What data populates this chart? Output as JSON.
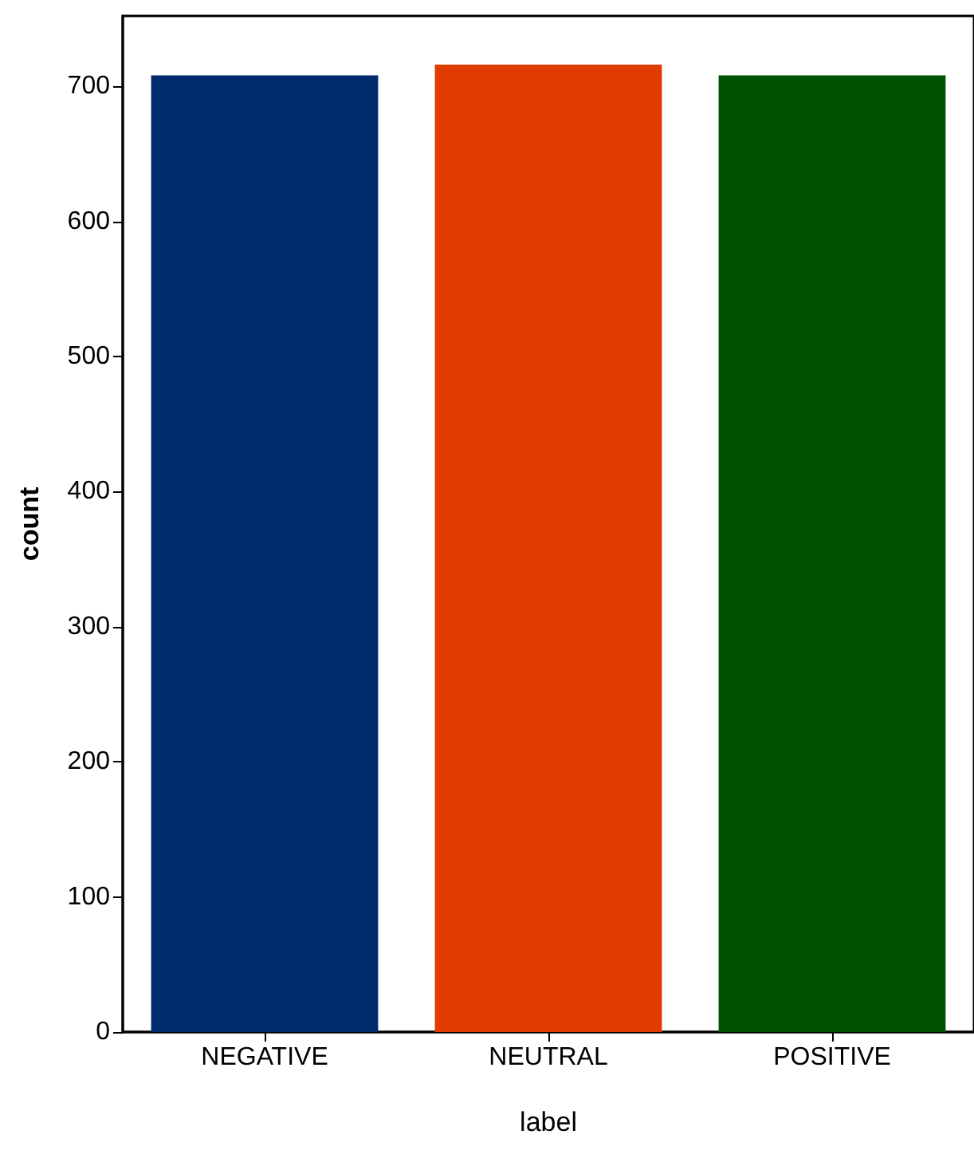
{
  "chart_data": {
    "type": "bar",
    "xlabel": "label",
    "ylabel": "count",
    "categories": [
      "NEGATIVE",
      "NEUTRAL",
      "POSITIVE"
    ],
    "values": [
      708,
      716,
      708
    ],
    "colors": [
      "#002a6e",
      "#e03c00",
      "#005200"
    ],
    "ylim": [
      0,
      752
    ],
    "yticks": [
      0,
      100,
      200,
      300,
      400,
      500,
      600,
      700
    ],
    "grid": false
  }
}
